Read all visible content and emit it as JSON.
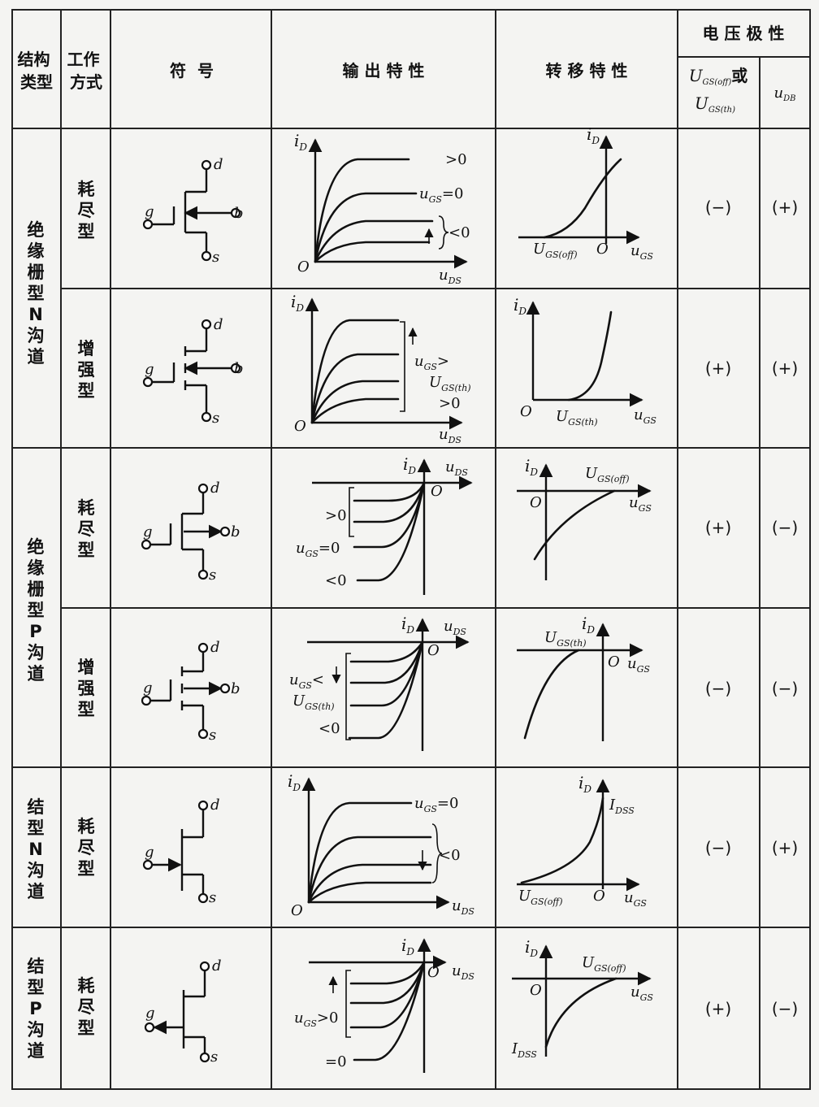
{
  "header": {
    "structure": "结构类型",
    "mode": "工作方式",
    "symbol": "符  号",
    "output": "输 出 特 性",
    "transfer": "转 移 特 性",
    "polarity": "电 压 极 性",
    "vgs_label_a": "U",
    "vgs_sub_a": "GS(off)",
    "vgs_or": "或",
    "vgs_label_b": "U",
    "vgs_sub_b": "GS(th)",
    "ub_label": "u",
    "ub_sub": "DB"
  },
  "groups": [
    {
      "name": "绝缘栅型N沟道"
    },
    {
      "name": "绝缘栅型P沟道"
    },
    {
      "name": "结型N沟道"
    },
    {
      "name": "结型P沟道"
    }
  ],
  "rows": [
    {
      "mode": "耗尽型",
      "vgs_polarity": "(−)",
      "ub_polarity": "(+)",
      "out_top": ">0",
      "out_mid": "u",
      "out_mid_sub": "GS",
      "out_mid_tail": "=0",
      "out_bot": "<0",
      "tr_left": "U",
      "tr_left_sub": "GS(off)",
      "tr_o": "O"
    },
    {
      "mode": "增强型",
      "vgs_polarity": "(+)",
      "ub_polarity": "(+)",
      "out_l1": "u",
      "out_l1_sub": "GS",
      "out_l1_tail": ">",
      "out_l2": "U",
      "out_l2_sub": "GS(th)",
      "out_l3": ">0",
      "tr_right": "U",
      "tr_right_sub": "GS(th)",
      "tr_o": "O"
    },
    {
      "mode": "耗尽型",
      "vgs_polarity": "(+)",
      "ub_polarity": "(−)",
      "out_top": ">0",
      "out_mid": "u",
      "out_mid_sub": "GS",
      "out_mid_tail": "=0",
      "out_bot": "<0",
      "tr_label": "U",
      "tr_label_sub": "GS(off)",
      "tr_o": "O"
    },
    {
      "mode": "增强型",
      "vgs_polarity": "(−)",
      "ub_polarity": "(−)",
      "out_l1": "u",
      "out_l1_sub": "GS",
      "out_l1_tail": "<",
      "out_l2": "U",
      "out_l2_sub": "GS(th)",
      "out_l3": "<0",
      "tr_label": "U",
      "tr_label_sub": "GS(th)",
      "tr_o": "O"
    },
    {
      "mode": "耗尽型",
      "vgs_polarity": "(−)",
      "ub_polarity": "(+)",
      "out_top": "u",
      "out_top_sub": "GS",
      "out_top_tail": "=0",
      "out_bot": "<0",
      "tr_left": "U",
      "tr_left_sub": "GS(off)",
      "tr_right": "I",
      "tr_right_sub": "DSS",
      "tr_o": "O"
    },
    {
      "mode": "耗尽型",
      "vgs_polarity": "(+)",
      "ub_polarity": "(−)",
      "out_mid": "u",
      "out_mid_sub": "GS",
      "out_mid_tail": ">0",
      "out_bot": "=0",
      "tr_label": "U",
      "tr_label_sub": "GS(off)",
      "tr_bottom": "I",
      "tr_bottom_sub": "DSS",
      "tr_o": "O"
    }
  ],
  "axes": {
    "iD": "i",
    "iD_sub": "D",
    "uDS": "u",
    "uDS_sub": "DS",
    "uGS": "u",
    "uGS_sub": "GS",
    "origin": "O"
  },
  "terminals": {
    "d": "d",
    "g": "g",
    "s": "s",
    "b": "b"
  }
}
